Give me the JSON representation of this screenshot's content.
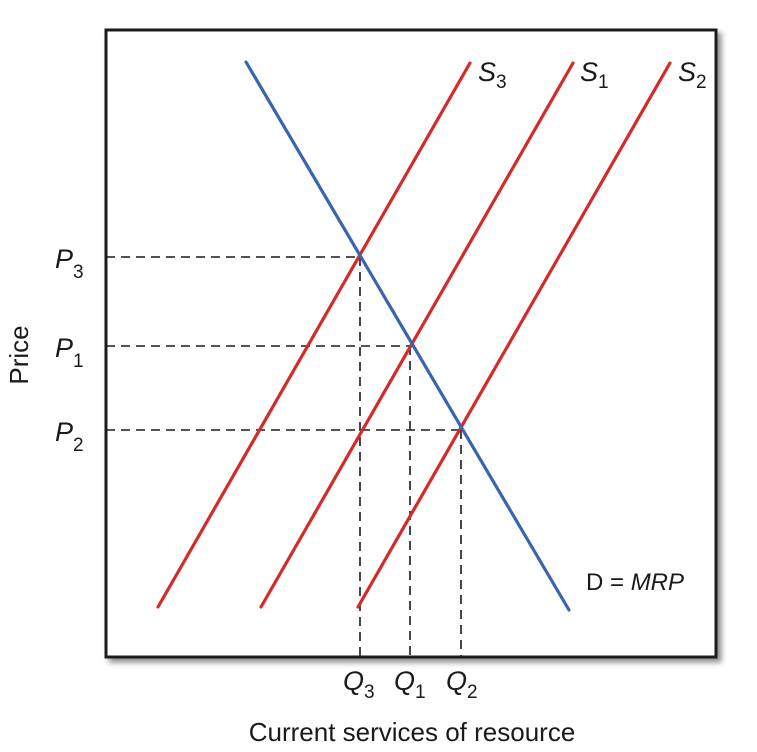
{
  "colors": {
    "supply": "#d42a2a",
    "demand": "#3a64ad",
    "axis": "#1a1a1a",
    "guide": "#1a1a1a"
  },
  "axes": {
    "x_title": "Current services of resource",
    "y_title": "Price"
  },
  "supply_curves": [
    {
      "id": "S3",
      "letter": "S",
      "sub": "3"
    },
    {
      "id": "S1",
      "letter": "S",
      "sub": "1"
    },
    {
      "id": "S2",
      "letter": "S",
      "sub": "2"
    }
  ],
  "demand_curve": {
    "prefix": "D = ",
    "emph": "MRP"
  },
  "price_labels": [
    {
      "id": "P3",
      "letter": "P",
      "sub": "3"
    },
    {
      "id": "P1",
      "letter": "P",
      "sub": "1"
    },
    {
      "id": "P2",
      "letter": "P",
      "sub": "2"
    }
  ],
  "quantity_labels": [
    {
      "id": "Q3",
      "letter": "Q",
      "sub": "3"
    },
    {
      "id": "Q1",
      "letter": "Q",
      "sub": "1"
    },
    {
      "id": "Q2",
      "letter": "Q",
      "sub": "2"
    }
  ]
}
